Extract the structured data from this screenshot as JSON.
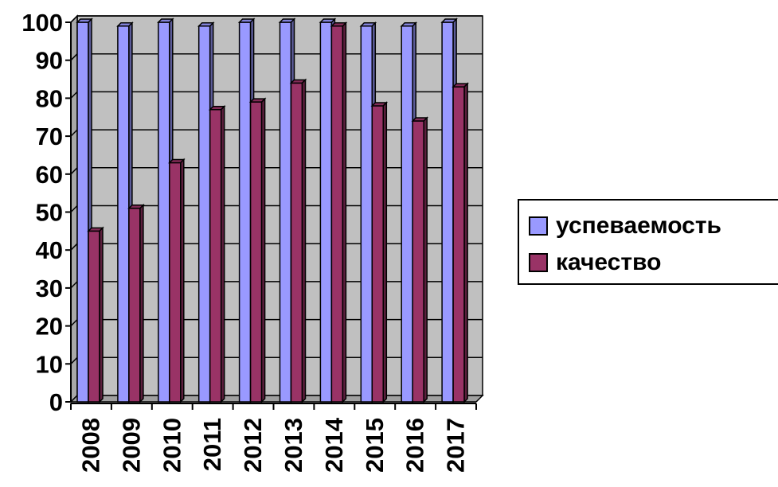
{
  "chart_data": {
    "type": "bar",
    "categories": [
      "2008",
      "2009",
      "2010",
      "2011",
      "2012",
      "2013",
      "2014",
      "2015",
      "2016",
      "2017"
    ],
    "series": [
      {
        "name": "успеваемость",
        "color": "#9999ff",
        "values": [
          100,
          99,
          100,
          99,
          100,
          100,
          100,
          99,
          99,
          100
        ]
      },
      {
        "name": "качество",
        "color": "#993366",
        "values": [
          45,
          51,
          63,
          77,
          79,
          84,
          99,
          78,
          74,
          83
        ]
      }
    ],
    "ylim": [
      0,
      100
    ],
    "yticks": [
      "0",
      "10",
      "20",
      "30",
      "40",
      "50",
      "60",
      "70",
      "80",
      "90",
      "100"
    ],
    "grid": true,
    "legend": "right",
    "plot_background": "#c0c0c0"
  }
}
